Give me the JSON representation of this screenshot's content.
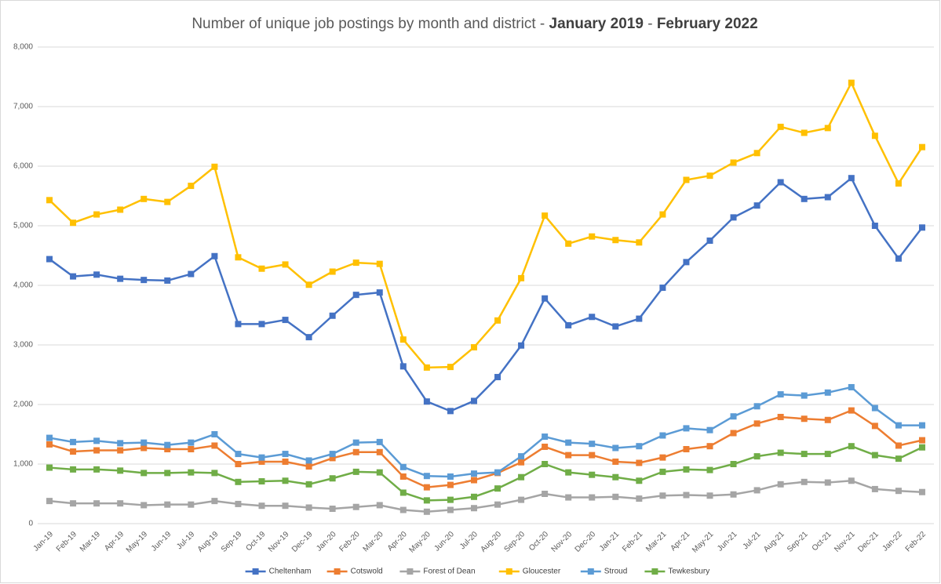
{
  "chart_data": {
    "type": "line",
    "title": [
      "Number of unique job postings by month and district -",
      "January 2019",
      "-",
      "February 2022"
    ],
    "categories": [
      "Jan-19",
      "Feb-19",
      "Mar-19",
      "Apr-19",
      "May-19",
      "Jun-19",
      "Jul-19",
      "Aug-19",
      "Sep-19",
      "Oct-19",
      "Nov-19",
      "Dec-19",
      "Jan-20",
      "Feb-20",
      "Mar-20",
      "Apr-20",
      "May-20",
      "Jun-20",
      "Jul-20",
      "Aug-20",
      "Sep-20",
      "Oct-20",
      "Nov-20",
      "Dec-20",
      "Jan-21",
      "Feb-21",
      "Mar-21",
      "Apr-21",
      "May-21",
      "Jun-21",
      "Jul-21",
      "Aug-21",
      "Sep-21",
      "Oct-21",
      "Nov-21",
      "Dec-21",
      "Jan-22",
      "Feb-22"
    ],
    "series": [
      {
        "name": "Cheltenham",
        "color": "#4472c4",
        "values": [
          4440,
          4150,
          4180,
          4110,
          4090,
          4080,
          4190,
          4490,
          3350,
          3350,
          3420,
          3130,
          3490,
          3840,
          3880,
          2640,
          2050,
          1890,
          2060,
          2460,
          2990,
          3780,
          3330,
          3470,
          3310,
          3440,
          3960,
          4390,
          4750,
          5140,
          5340,
          5730,
          5450,
          5480,
          5800,
          5000,
          4450,
          4970
        ]
      },
      {
        "name": "Cotswold",
        "color": "#ed7d31",
        "values": [
          1330,
          1210,
          1230,
          1230,
          1270,
          1250,
          1250,
          1310,
          1000,
          1040,
          1040,
          960,
          1100,
          1200,
          1200,
          790,
          610,
          650,
          730,
          850,
          1030,
          1290,
          1150,
          1150,
          1040,
          1020,
          1110,
          1250,
          1300,
          1520,
          1680,
          1790,
          1760,
          1740,
          1900,
          1640,
          1310,
          1400
        ]
      },
      {
        "name": "Forest of Dean",
        "color": "#a5a5a5",
        "values": [
          380,
          340,
          340,
          340,
          310,
          320,
          320,
          380,
          330,
          300,
          300,
          270,
          250,
          280,
          310,
          230,
          200,
          230,
          260,
          320,
          400,
          500,
          440,
          440,
          450,
          420,
          470,
          480,
          470,
          490,
          560,
          660,
          700,
          690,
          720,
          580,
          550,
          530
        ]
      },
      {
        "name": "Gloucester",
        "color": "#ffc000",
        "values": [
          5430,
          5050,
          5190,
          5270,
          5450,
          5400,
          5670,
          5990,
          4470,
          4280,
          4350,
          4010,
          4230,
          4380,
          4360,
          3090,
          2620,
          2630,
          2960,
          3410,
          4120,
          5170,
          4700,
          4820,
          4760,
          4720,
          5190,
          5770,
          5840,
          6060,
          6220,
          6660,
          6560,
          6640,
          7400,
          6510,
          5710,
          6320
        ]
      },
      {
        "name": "Stroud",
        "color": "#5b9bd5",
        "values": [
          1440,
          1370,
          1390,
          1350,
          1360,
          1320,
          1360,
          1500,
          1170,
          1110,
          1170,
          1060,
          1170,
          1360,
          1370,
          950,
          800,
          790,
          840,
          860,
          1130,
          1460,
          1360,
          1340,
          1270,
          1300,
          1480,
          1600,
          1570,
          1800,
          1970,
          2170,
          2150,
          2200,
          2290,
          1940,
          1650,
          1650
        ]
      },
      {
        "name": "Tewkesbury",
        "color": "#70ad47",
        "values": [
          940,
          910,
          910,
          890,
          850,
          850,
          860,
          850,
          700,
          710,
          720,
          660,
          760,
          870,
          860,
          520,
          390,
          400,
          450,
          590,
          780,
          1000,
          860,
          820,
          780,
          720,
          870,
          910,
          900,
          1000,
          1130,
          1190,
          1170,
          1170,
          1300,
          1150,
          1090,
          1280
        ]
      }
    ],
    "ylim": [
      0,
      8000
    ],
    "yticks": [
      0,
      {
        "value": 1000,
        "label": "1,000"
      },
      {
        "value": 2000,
        "label": "2,000"
      },
      {
        "value": 3000,
        "label": "3,000"
      },
      {
        "value": 4000,
        "label": "4,000"
      },
      {
        "value": 5000,
        "label": "5,000"
      },
      {
        "value": 6000,
        "label": "6,000"
      },
      {
        "value": 7000,
        "label": "7,000"
      },
      {
        "value": 8000,
        "label": "8,000"
      }
    ],
    "grid": true,
    "legend": "bottom"
  }
}
